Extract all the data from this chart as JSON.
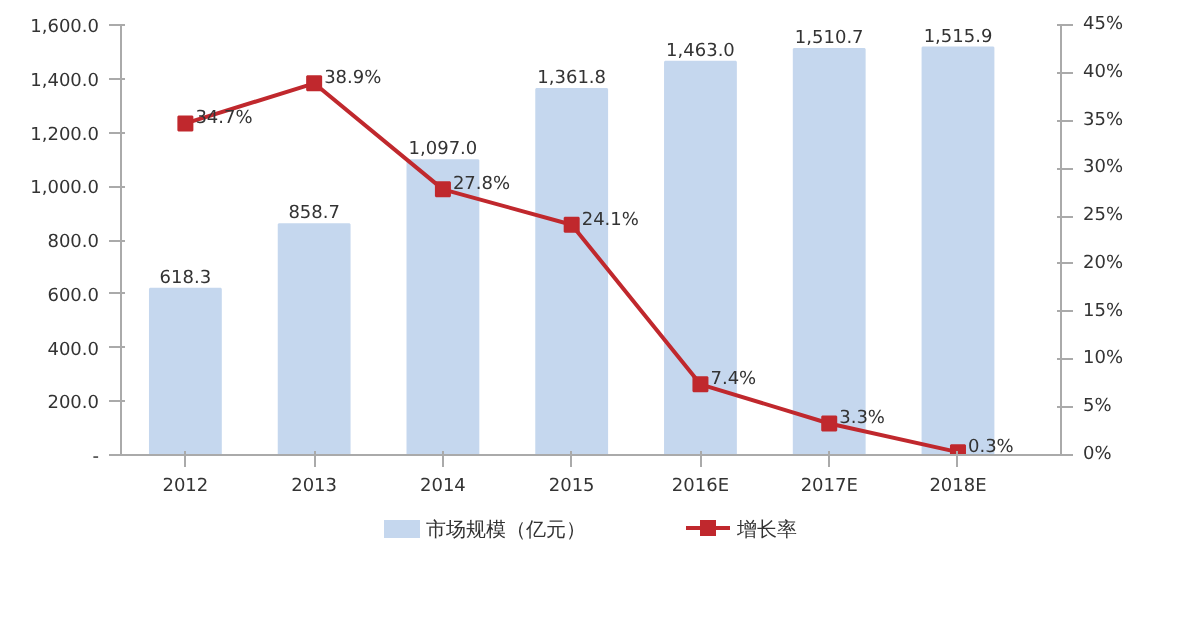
{
  "chart_data": {
    "type": "bar",
    "categories": [
      "2012",
      "2013",
      "2014",
      "2015",
      "2016E",
      "2017E",
      "2018E"
    ],
    "series": [
      {
        "name": "市场规模（亿元）",
        "type": "bar",
        "color": "#c5d7ee",
        "values": [
          618.3,
          858.7,
          1097.0,
          1361.8,
          1463.0,
          1510.7,
          1515.9
        ],
        "value_labels": [
          "618.3",
          "858.7",
          "1,097.0",
          "1,361.8",
          "1,463.0",
          "1,510.7",
          "1,515.9"
        ]
      },
      {
        "name": "增长率",
        "type": "line",
        "axis": "y2",
        "color": "#c0282d",
        "marker": "square",
        "values": [
          34.7,
          38.9,
          27.8,
          24.1,
          7.4,
          3.3,
          0.3
        ],
        "value_labels": [
          "34.7%",
          "38.9%",
          "27.8%",
          "24.1%",
          "7.4%",
          "3.3%",
          "0.3%"
        ]
      }
    ],
    "ylim": [
      0,
      1600
    ],
    "yticks": [
      {
        "value": 0,
        "label": "-"
      },
      {
        "value": 200,
        "label": "200.0"
      },
      {
        "value": 400,
        "label": "400.0"
      },
      {
        "value": 600,
        "label": "600.0"
      },
      {
        "value": 800,
        "label": "800.0"
      },
      {
        "value": 1000,
        "label": "1,000.0"
      },
      {
        "value": 1200,
        "label": "1,200.0"
      },
      {
        "value": 1400,
        "label": "1,400.0"
      },
      {
        "value": 1600,
        "label": "1,600.0"
      }
    ],
    "y2lim": [
      0,
      45
    ],
    "y2ticks": [
      {
        "value": 0,
        "label": "0%"
      },
      {
        "value": 5,
        "label": "5%"
      },
      {
        "value": 10,
        "label": "10%"
      },
      {
        "value": 15,
        "label": "15%"
      },
      {
        "value": 20,
        "label": "20%"
      },
      {
        "value": 25,
        "label": "25%"
      },
      {
        "value": 30,
        "label": "30%"
      },
      {
        "value": 35,
        "label": "35%"
      },
      {
        "value": 40,
        "label": "40%"
      },
      {
        "value": 45,
        "label": "45%"
      }
    ],
    "grid": false,
    "legend": "bottom"
  }
}
